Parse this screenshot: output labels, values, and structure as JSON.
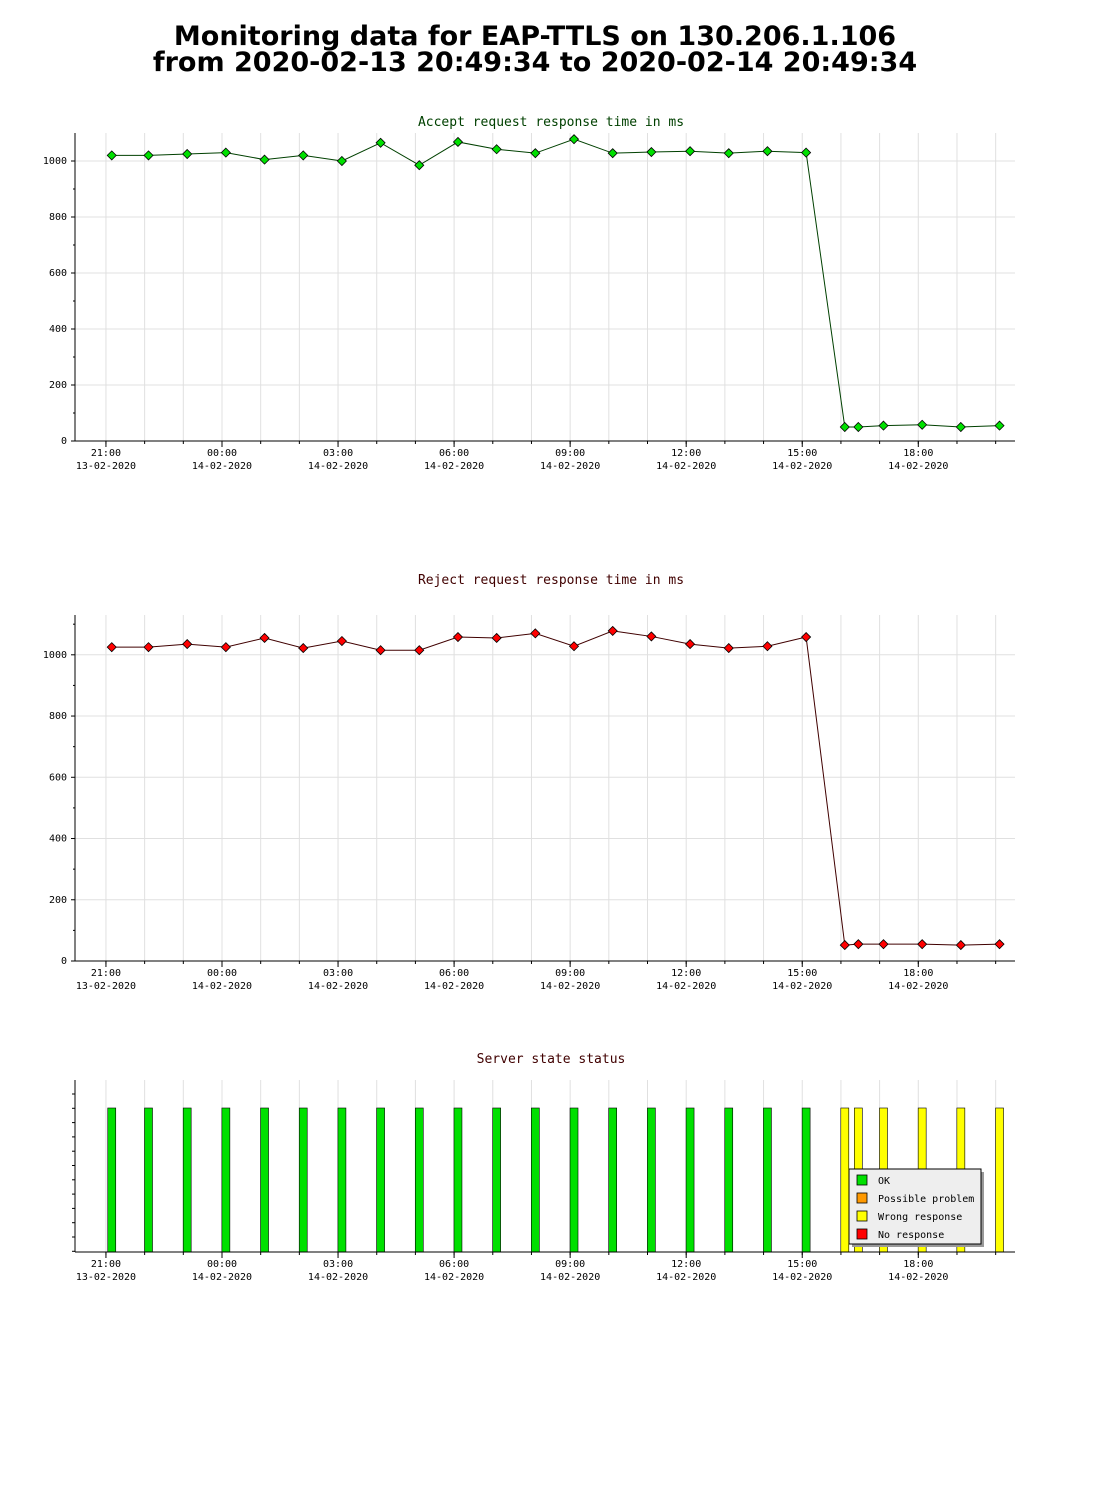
{
  "page": {
    "title_line1": "Monitoring data for EAP-TTLS on 130.206.1.106",
    "title_line2": "from 2020-02-13 20:49:34 to 2020-02-14 20:49:34"
  },
  "chart_data": [
    {
      "type": "line",
      "title": "Accept request response time in ms",
      "title_color": "#004000",
      "line_color": "#004000",
      "marker_color": "#00e000",
      "xlim": [
        -0.8,
        23.5
      ],
      "ylim": [
        0,
        1100
      ],
      "y_ticks": [
        0,
        200,
        400,
        600,
        800,
        1000
      ],
      "x_ticks": [
        {
          "x": 0,
          "time": "21:00",
          "date": "13-02-2020"
        },
        {
          "x": 3,
          "time": "00:00",
          "date": "14-02-2020"
        },
        {
          "x": 6,
          "time": "03:00",
          "date": "14-02-2020"
        },
        {
          "x": 9,
          "time": "06:00",
          "date": "14-02-2020"
        },
        {
          "x": 12,
          "time": "09:00",
          "date": "14-02-2020"
        },
        {
          "x": 15,
          "time": "12:00",
          "date": "14-02-2020"
        },
        {
          "x": 18,
          "time": "15:00",
          "date": "14-02-2020"
        },
        {
          "x": 21,
          "time": "18:00",
          "date": "14-02-2020"
        }
      ],
      "grid": true,
      "x": [
        0.15,
        1.1,
        2.1,
        3.1,
        4.1,
        5.1,
        6.1,
        7.1,
        8.1,
        9.1,
        10.1,
        11.1,
        12.1,
        13.1,
        14.1,
        15.1,
        16.1,
        17.1,
        18.1,
        19.1,
        19.45,
        20.1,
        21.1,
        22.1,
        23.1
      ],
      "values": [
        1020,
        1020,
        1025,
        1030,
        1005,
        1020,
        1000,
        1065,
        985,
        1068,
        1042,
        1028,
        1078,
        1028,
        1032,
        1035,
        1028,
        1035,
        1030,
        50,
        50,
        55,
        58,
        50,
        55
      ]
    },
    {
      "type": "line",
      "title": "Reject request response time in ms",
      "title_color": "#400000",
      "line_color": "#400000",
      "marker_color": "#ff0000",
      "xlim": [
        -0.8,
        23.5
      ],
      "ylim": [
        0,
        1130
      ],
      "y_ticks": [
        0,
        200,
        400,
        600,
        800,
        1000
      ],
      "x_ticks": [
        {
          "x": 0,
          "time": "21:00",
          "date": "13-02-2020"
        },
        {
          "x": 3,
          "time": "00:00",
          "date": "14-02-2020"
        },
        {
          "x": 6,
          "time": "03:00",
          "date": "14-02-2020"
        },
        {
          "x": 9,
          "time": "06:00",
          "date": "14-02-2020"
        },
        {
          "x": 12,
          "time": "09:00",
          "date": "14-02-2020"
        },
        {
          "x": 15,
          "time": "12:00",
          "date": "14-02-2020"
        },
        {
          "x": 18,
          "time": "15:00",
          "date": "14-02-2020"
        },
        {
          "x": 21,
          "time": "18:00",
          "date": "14-02-2020"
        }
      ],
      "grid": true,
      "x": [
        0.15,
        1.1,
        2.1,
        3.1,
        4.1,
        5.1,
        6.1,
        7.1,
        8.1,
        9.1,
        10.1,
        11.1,
        12.1,
        13.1,
        14.1,
        15.1,
        16.1,
        17.1,
        18.1,
        19.1,
        19.45,
        20.1,
        21.1,
        22.1,
        23.1
      ],
      "values": [
        1025,
        1025,
        1035,
        1025,
        1055,
        1022,
        1045,
        1015,
        1015,
        1058,
        1055,
        1070,
        1028,
        1078,
        1060,
        1035,
        1022,
        1028,
        1058,
        52,
        55,
        55,
        55,
        52,
        55
      ]
    },
    {
      "type": "bar",
      "title": "Server state status",
      "title_color": "#400000",
      "xlim": [
        -0.8,
        23.5
      ],
      "x_ticks": [
        {
          "x": 0,
          "time": "21:00",
          "date": "13-02-2020"
        },
        {
          "x": 3,
          "time": "00:00",
          "date": "14-02-2020"
        },
        {
          "x": 6,
          "time": "03:00",
          "date": "14-02-2020"
        },
        {
          "x": 9,
          "time": "06:00",
          "date": "14-02-2020"
        },
        {
          "x": 12,
          "time": "09:00",
          "date": "14-02-2020"
        },
        {
          "x": 15,
          "time": "12:00",
          "date": "14-02-2020"
        },
        {
          "x": 18,
          "time": "15:00",
          "date": "14-02-2020"
        },
        {
          "x": 21,
          "time": "18:00",
          "date": "14-02-2020"
        }
      ],
      "x": [
        0.15,
        1.1,
        2.1,
        3.1,
        4.1,
        5.1,
        6.1,
        7.1,
        8.1,
        9.1,
        10.1,
        11.1,
        12.1,
        13.1,
        14.1,
        15.1,
        16.1,
        17.1,
        18.1,
        19.1,
        19.45,
        20.1,
        21.1,
        22.1,
        23.1
      ],
      "states": [
        "OK",
        "OK",
        "OK",
        "OK",
        "OK",
        "OK",
        "OK",
        "OK",
        "OK",
        "OK",
        "OK",
        "OK",
        "OK",
        "OK",
        "OK",
        "OK",
        "OK",
        "OK",
        "OK",
        "Wrong response",
        "Wrong response",
        "Wrong response",
        "Wrong response",
        "Wrong response",
        "Wrong response"
      ],
      "legend": [
        {
          "label": "OK",
          "color": "#00e000"
        },
        {
          "label": "Possible problem",
          "color": "#ff9900"
        },
        {
          "label": "Wrong response",
          "color": "#ffff00"
        },
        {
          "label": "No response",
          "color": "#ff0000"
        }
      ],
      "legend_position": "bottom-right"
    }
  ]
}
